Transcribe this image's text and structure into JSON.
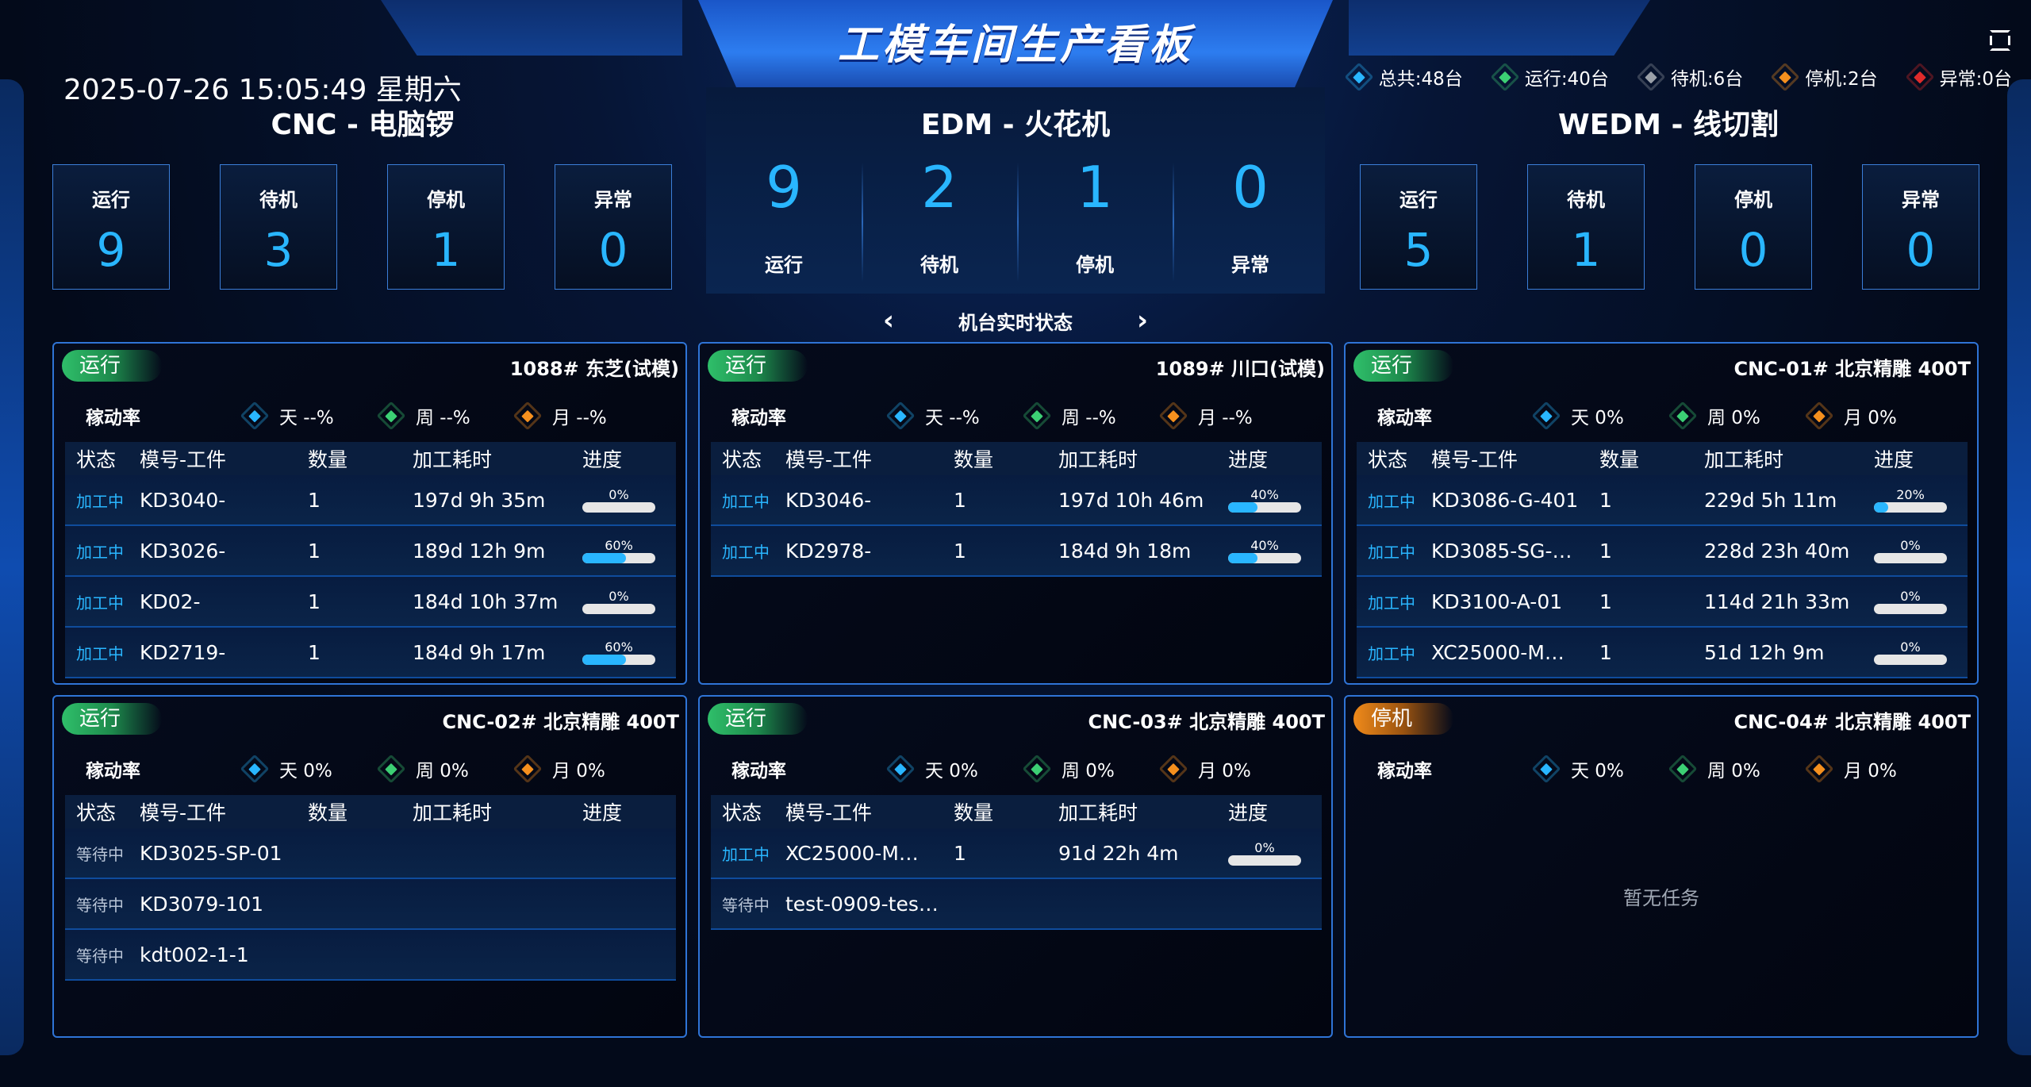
{
  "header": {
    "title": "工模车间生产看板",
    "datetime": "2025-07-26 15:05:49 星期六"
  },
  "legend": [
    {
      "label": "总共:48台",
      "color": "#29b6ff"
    },
    {
      "label": "运行:40台",
      "color": "#3ccf74"
    },
    {
      "label": "待机:6台",
      "color": "#9aa0a8"
    },
    {
      "label": "停机:2台",
      "color": "#f5901e"
    },
    {
      "label": "异常:0台",
      "color": "#e02b2b"
    }
  ],
  "groups": [
    {
      "title": "CNC - 电脑锣",
      "stats": [
        {
          "label": "运行",
          "value": "9"
        },
        {
          "label": "待机",
          "value": "3"
        },
        {
          "label": "停机",
          "value": "1"
        },
        {
          "label": "异常",
          "value": "0"
        }
      ]
    },
    {
      "title": "EDM - 火花机",
      "stats": [
        {
          "label": "运行",
          "value": "9"
        },
        {
          "label": "待机",
          "value": "2"
        },
        {
          "label": "停机",
          "value": "1"
        },
        {
          "label": "异常",
          "value": "0"
        }
      ]
    },
    {
      "title": "WEDM - 线切割",
      "stats": [
        {
          "label": "运行",
          "value": "5"
        },
        {
          "label": "待机",
          "value": "1"
        },
        {
          "label": "停机",
          "value": "0"
        },
        {
          "label": "异常",
          "value": "0"
        }
      ]
    }
  ],
  "nav": {
    "prev": "‹",
    "title": "机台实时状态",
    "next": "›"
  },
  "rate_label": "稼动率",
  "table_headers": [
    "状态",
    "模号-工件",
    "数量",
    "加工耗时",
    "进度"
  ],
  "empty_text": "暂无任务",
  "colors": {
    "day": "#29b6ff",
    "week": "#3ccf74",
    "month": "#f5901e"
  },
  "machines": [
    {
      "status": "运行",
      "status_type": "run",
      "name": "1088# 东芝(试模)",
      "day": "天 --%",
      "week": "周 --%",
      "month": "月 --%",
      "rows": [
        {
          "state": "加工中",
          "part": "KD3040-",
          "qty": "1",
          "time": "197d 9h 35m",
          "progress": "0%",
          "pct": 0
        },
        {
          "state": "加工中",
          "part": "KD3026-",
          "qty": "1",
          "time": "189d 12h 9m",
          "progress": "60%",
          "pct": 60
        },
        {
          "state": "加工中",
          "part": "KD02-",
          "qty": "1",
          "time": "184d 10h 37m",
          "progress": "0%",
          "pct": 0
        },
        {
          "state": "加工中",
          "part": "KD2719-",
          "qty": "1",
          "time": "184d 9h 17m",
          "progress": "60%",
          "pct": 60
        }
      ]
    },
    {
      "status": "运行",
      "status_type": "run",
      "name": "1089# 川口(试模)",
      "day": "天 --%",
      "week": "周 --%",
      "month": "月 --%",
      "rows": [
        {
          "state": "加工中",
          "part": "KD3046-",
          "qty": "1",
          "time": "197d 10h 46m",
          "progress": "40%",
          "pct": 40
        },
        {
          "state": "加工中",
          "part": "KD2978-",
          "qty": "1",
          "time": "184d 9h 18m",
          "progress": "40%",
          "pct": 40
        }
      ]
    },
    {
      "status": "运行",
      "status_type": "run",
      "name": "CNC-01# 北京精雕 400T",
      "day": "天 0%",
      "week": "周 0%",
      "month": "月 0%",
      "rows": [
        {
          "state": "加工中",
          "part": "KD3086-G-401",
          "qty": "1",
          "time": "229d 5h 11m",
          "progress": "20%",
          "pct": 20
        },
        {
          "state": "加工中",
          "part": "KD3085-SG-…",
          "qty": "1",
          "time": "228d 23h 40m",
          "progress": "0%",
          "pct": 0
        },
        {
          "state": "加工中",
          "part": "KD3100-A-01",
          "qty": "1",
          "time": "114d 21h 33m",
          "progress": "0%",
          "pct": 0
        },
        {
          "state": "加工中",
          "part": "XC25000-M…",
          "qty": "1",
          "time": "51d 12h 9m",
          "progress": "0%",
          "pct": 0
        }
      ]
    },
    {
      "status": "运行",
      "status_type": "run",
      "name": "CNC-02# 北京精雕 400T",
      "day": "天 0%",
      "week": "周 0%",
      "month": "月 0%",
      "rows": [
        {
          "state": "等待中",
          "part": "KD3025-SP-01"
        },
        {
          "state": "等待中",
          "part": "KD3079-101"
        },
        {
          "state": "等待中",
          "part": "kdt002-1-1"
        }
      ]
    },
    {
      "status": "运行",
      "status_type": "run",
      "name": "CNC-03# 北京精雕 400T",
      "day": "天 0%",
      "week": "周 0%",
      "month": "月 0%",
      "rows": [
        {
          "state": "加工中",
          "part": "XC25000-M…",
          "qty": "1",
          "time": "91d 22h 4m",
          "progress": "0%",
          "pct": 0
        },
        {
          "state": "等待中",
          "part": "test-0909-tes…"
        }
      ]
    },
    {
      "status": "停机",
      "status_type": "stop",
      "name": "CNC-04# 北京精雕 400T",
      "day": "天 0%",
      "week": "周 0%",
      "month": "月 0%",
      "rows": []
    }
  ]
}
